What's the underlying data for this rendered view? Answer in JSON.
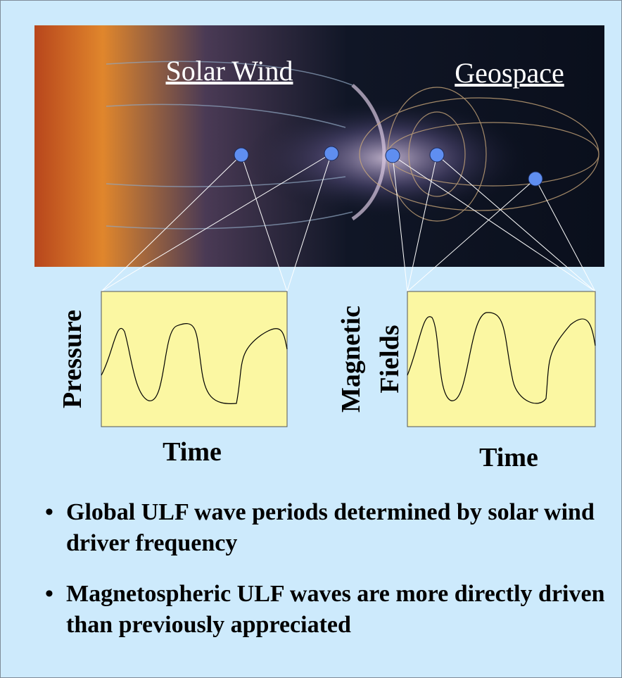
{
  "image": {
    "labels": [
      "Solar Wind",
      "Geospace"
    ]
  },
  "panels": [
    {
      "y_label": [
        "Pressure"
      ],
      "x_label": "Time"
    },
    {
      "y_label": [
        "Magnetic",
        "Fields"
      ],
      "x_label": "Time"
    }
  ],
  "bullets": [
    "Global ULF wave periods determined by solar wind driver frequency",
    "Magnetospheric ULF waves are more directly driven than previously appreciated"
  ]
}
